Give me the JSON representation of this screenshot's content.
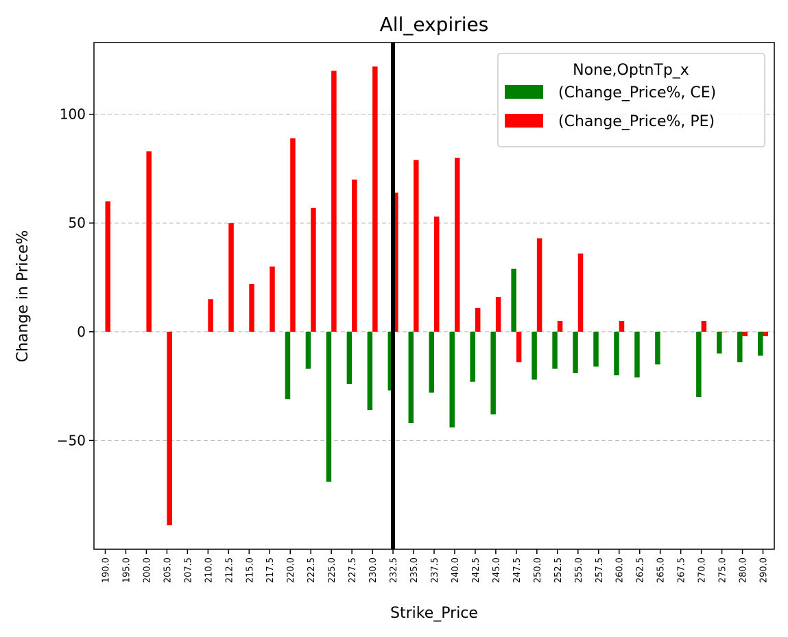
{
  "chart_data": {
    "type": "bar",
    "title": "All_expiries",
    "xlabel": "Strike_Price",
    "ylabel": "Change in Price%",
    "categories": [
      "190.0",
      "195.0",
      "200.0",
      "205.0",
      "207.5",
      "210.0",
      "212.5",
      "215.0",
      "217.5",
      "220.0",
      "222.5",
      "225.0",
      "227.5",
      "230.0",
      "232.5",
      "235.0",
      "237.5",
      "240.0",
      "242.5",
      "245.0",
      "247.5",
      "250.0",
      "252.5",
      "255.0",
      "257.5",
      "260.0",
      "262.5",
      "265.0",
      "267.5",
      "270.0",
      "275.0",
      "280.0",
      "290.0"
    ],
    "series": [
      {
        "name": "(Change_Price%, CE)",
        "color": "#008000",
        "values": [
          null,
          null,
          null,
          null,
          null,
          null,
          null,
          null,
          null,
          -31,
          -17,
          -69,
          -24,
          -36,
          -27,
          -42,
          -28,
          -44,
          -23,
          -38,
          29,
          -22,
          -17,
          -19,
          -16,
          -20,
          -21,
          -15,
          null,
          -30,
          -10,
          -14,
          -11
        ]
      },
      {
        "name": "(Change_Price%, PE)",
        "color": "#ff0000",
        "values": [
          60,
          null,
          83,
          -89,
          null,
          15,
          50,
          22,
          30,
          89,
          57,
          120,
          70,
          122,
          64,
          79,
          53,
          80,
          11,
          16,
          -14,
          43,
          5,
          36,
          null,
          5,
          null,
          null,
          null,
          5,
          0,
          -2,
          -2
        ]
      }
    ],
    "ylim": [
      -100,
      133
    ],
    "yticks": [
      -50,
      0,
      50,
      100
    ],
    "ytick_labels": [
      "−50",
      "0",
      "50",
      "100"
    ],
    "grid": "y-dashed",
    "vline_category": "232.5",
    "legend": {
      "title": "None,OptnTp_x",
      "placement": "top-right"
    }
  }
}
